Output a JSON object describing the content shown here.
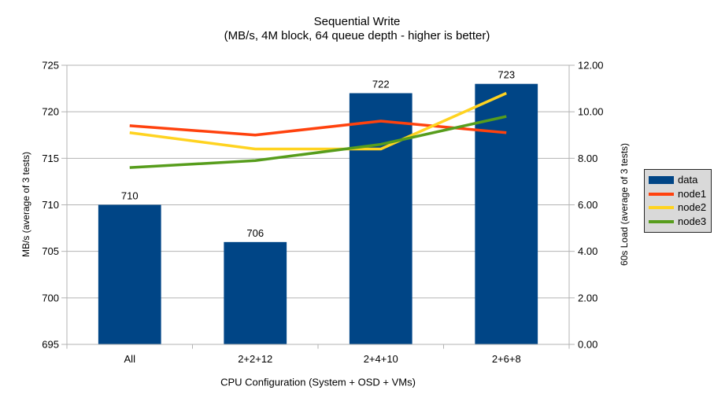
{
  "chart_data": {
    "type": "combo-bar-line",
    "title": "Sequential Write",
    "subtitle": "(MB/s, 4M block, 64 queue depth - higher is better)",
    "categories": [
      "All",
      "2+2+12",
      "2+4+10",
      "2+6+8"
    ],
    "bar_series": {
      "name": "data",
      "color": "#004586",
      "axis": "left",
      "values": [
        710,
        706,
        722,
        723
      ],
      "data_labels": [
        "710",
        "706",
        "722",
        "723"
      ]
    },
    "line_series": [
      {
        "name": "node1",
        "color": "#ff420e",
        "axis": "right",
        "values": [
          9.4,
          9.0,
          9.6,
          9.1
        ]
      },
      {
        "name": "node2",
        "color": "#ffd320",
        "axis": "right",
        "values": [
          9.1,
          8.4,
          8.4,
          10.8
        ]
      },
      {
        "name": "node3",
        "color": "#579d1c",
        "axis": "right",
        "values": [
          7.6,
          7.9,
          8.6,
          9.8
        ]
      }
    ],
    "left_axis": {
      "title": "MB/s (average of 3 tests)",
      "min": 695,
      "max": 725,
      "step": 5,
      "tick_labels": [
        "695",
        "700",
        "705",
        "710",
        "715",
        "720",
        "725"
      ]
    },
    "right_axis": {
      "title": "60s Load (average of 3 tests)",
      "min": 0,
      "max": 12,
      "step": 2,
      "tick_labels": [
        "0.00",
        "2.00",
        "4.00",
        "6.00",
        "8.00",
        "10.00",
        "12.00"
      ]
    },
    "x_axis": {
      "title": "CPU Configuration (System + OSD + VMs)"
    },
    "legend": {
      "position": "right",
      "entries": [
        "data",
        "node1",
        "node2",
        "node3"
      ]
    },
    "grid": "horizontal",
    "colors": {
      "background": "#ffffff",
      "gridline": "#b3b3b3",
      "axis_line": "#b3b3b3",
      "text": "#000000",
      "legend_background": "#d9d9d9",
      "legend_border": "#262626"
    }
  }
}
